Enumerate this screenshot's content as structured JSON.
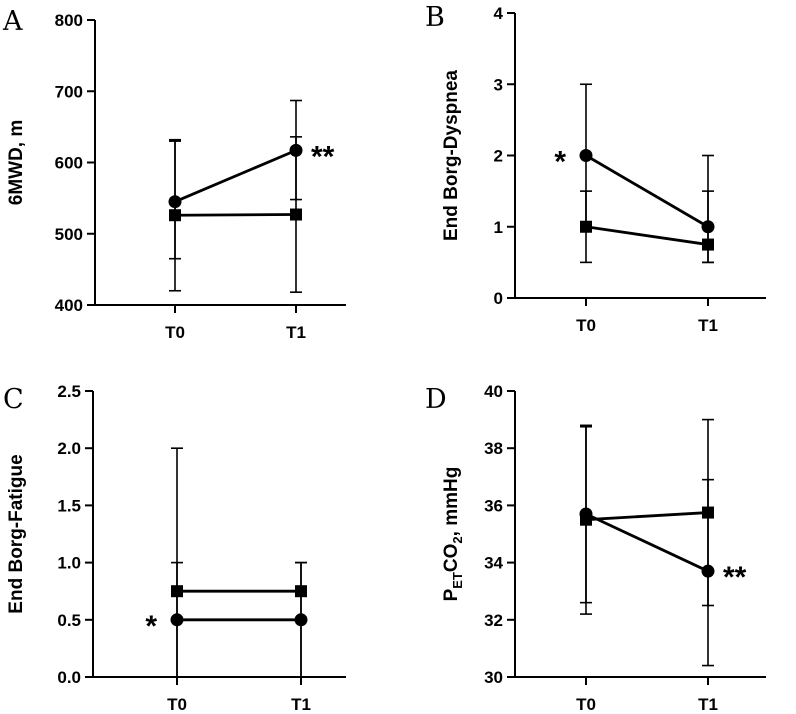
{
  "chart_data": [
    {
      "panel": "A",
      "type": "line",
      "ylabel": "6MWD, m",
      "categories": [
        "T0",
        "T1"
      ],
      "ylim": [
        400,
        800
      ],
      "yticks": [
        400,
        500,
        600,
        700,
        800
      ],
      "series": [
        {
          "name": "circle",
          "marker": "circle",
          "values": [
            545,
            617
          ],
          "err_low": [
            465,
            548
          ],
          "err_high": [
            630,
            687
          ]
        },
        {
          "name": "square",
          "marker": "square",
          "values": [
            526,
            527
          ],
          "err_low": [
            420,
            418
          ],
          "err_high": [
            632,
            636
          ]
        }
      ],
      "annotations": [
        {
          "text": "**",
          "at": "T1",
          "value": 617,
          "side": "right"
        }
      ]
    },
    {
      "panel": "B",
      "type": "line",
      "ylabel": "End Borg-Dyspnea",
      "categories": [
        "T0",
        "T1"
      ],
      "ylim": [
        0,
        4
      ],
      "yticks": [
        0,
        1,
        2,
        3,
        4
      ],
      "series": [
        {
          "name": "circle",
          "marker": "circle",
          "values": [
            2,
            1
          ],
          "err_low": [
            1,
            0.5
          ],
          "err_high": [
            3,
            2
          ]
        },
        {
          "name": "square",
          "marker": "square",
          "values": [
            1,
            0.75
          ],
          "err_low": [
            0.5,
            0.5
          ],
          "err_high": [
            1.5,
            1.5
          ]
        }
      ],
      "annotations": [
        {
          "text": "*",
          "at": "T0",
          "value": 2,
          "side": "left"
        }
      ]
    },
    {
      "panel": "C",
      "type": "line",
      "ylabel": "End Borg-Fatigue",
      "categories": [
        "T0",
        "T1"
      ],
      "ylim": [
        0,
        2.5
      ],
      "yticks": [
        "0.0",
        "0.5",
        "1.0",
        "1.5",
        "2.0",
        "2.5"
      ],
      "series": [
        {
          "name": "circle",
          "marker": "circle",
          "values": [
            0.5,
            0.5
          ],
          "err_low": [
            0,
            0
          ],
          "err_high": [
            1,
            1
          ]
        },
        {
          "name": "square",
          "marker": "square",
          "values": [
            0.75,
            0.75
          ],
          "err_low": [
            0,
            0
          ],
          "err_high": [
            2,
            1
          ]
        }
      ],
      "annotations": [
        {
          "text": "*",
          "at": "T0",
          "value": 0.5,
          "side": "left"
        }
      ]
    },
    {
      "panel": "D",
      "type": "line",
      "ylabel": "PETCO2, mmHg",
      "ylabel_parts": {
        "main": "P",
        "sub1": "ET",
        "mid": "CO",
        "sub2": "2",
        "rest": ", mmHg"
      },
      "categories": [
        "T0",
        "T1"
      ],
      "ylim": [
        30,
        40
      ],
      "yticks": [
        30,
        32,
        34,
        36,
        38,
        40
      ],
      "series": [
        {
          "name": "circle",
          "marker": "circle",
          "values": [
            35.7,
            33.7
          ],
          "err_low": [
            32.6,
            30.4
          ],
          "err_high": [
            38.8,
            36.9
          ]
        },
        {
          "name": "square",
          "marker": "square",
          "values": [
            35.5,
            35.75
          ],
          "err_low": [
            32.2,
            32.5
          ],
          "err_high": [
            38.75,
            39
          ]
        }
      ],
      "annotations": [
        {
          "text": "**",
          "at": "T1",
          "value": 33.7,
          "side": "right"
        }
      ]
    }
  ]
}
